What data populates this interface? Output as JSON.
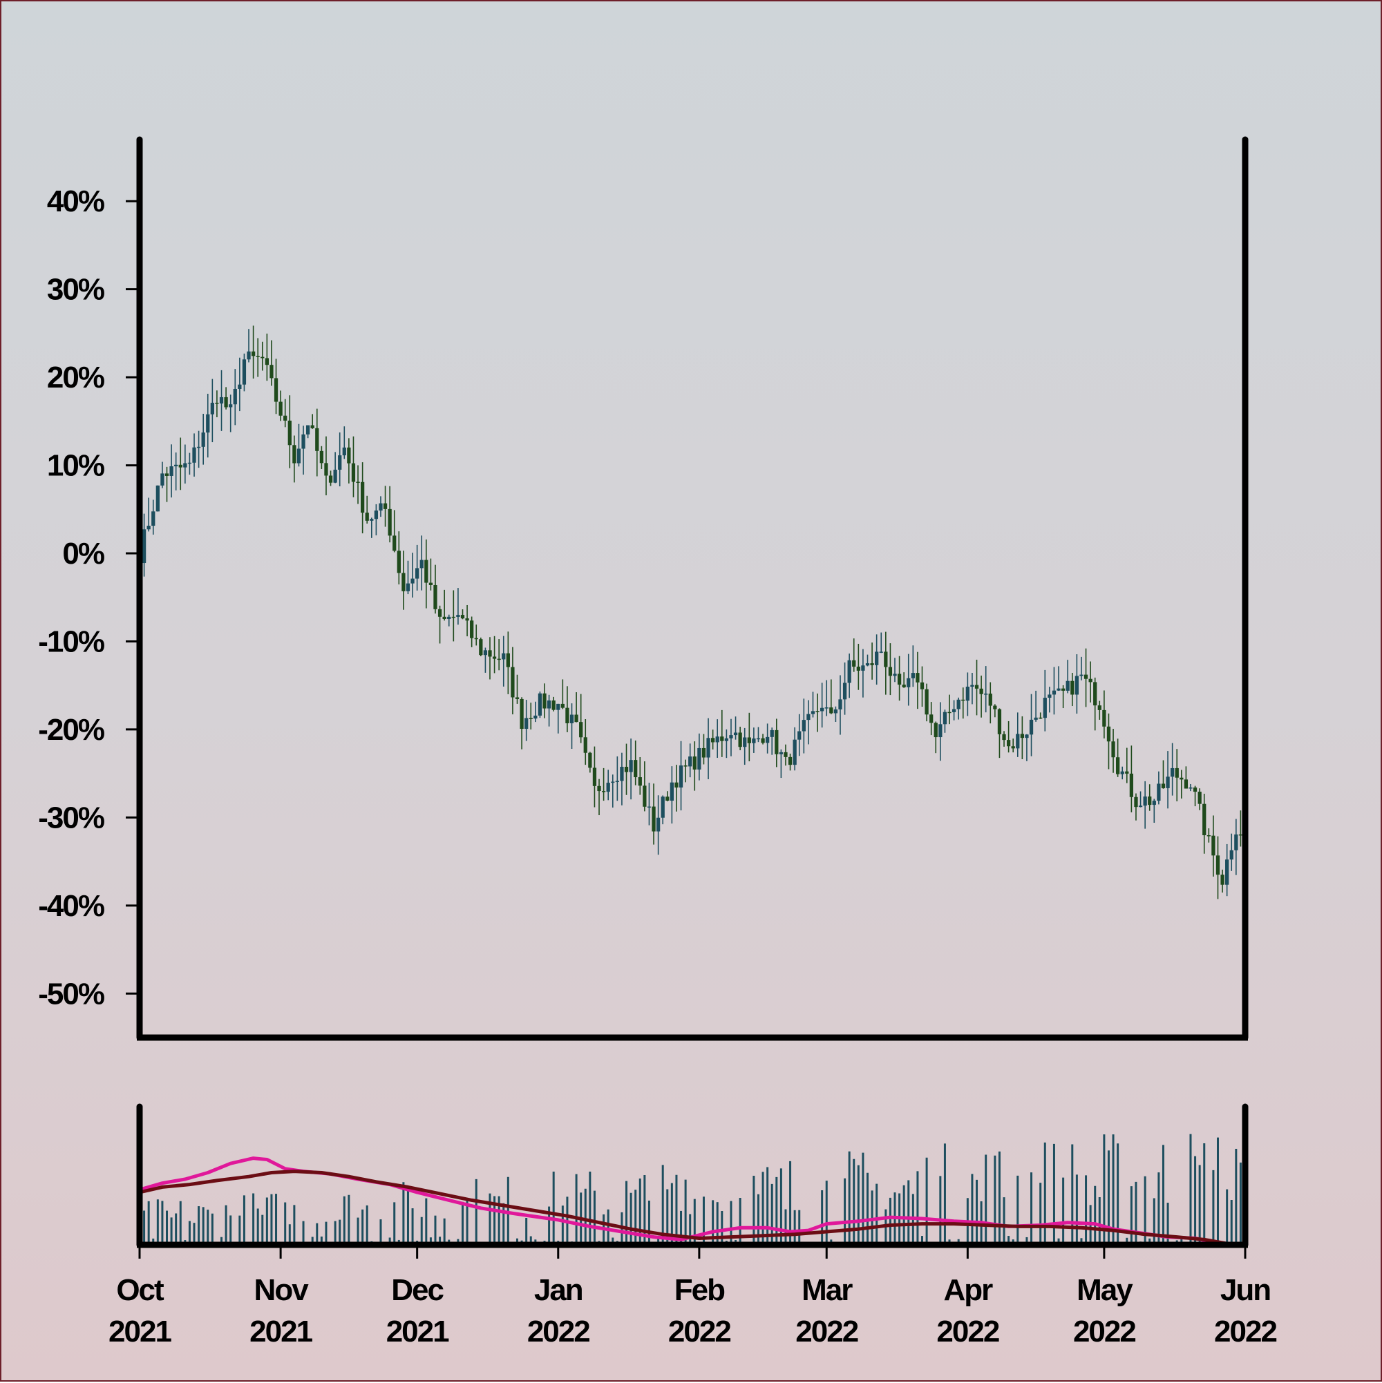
{
  "chart_data": {
    "type": "candlestick",
    "title": "",
    "xlabel": "",
    "ylabel": "",
    "ylim": [
      -55,
      47
    ],
    "yticks": [
      40,
      30,
      20,
      10,
      0,
      -10,
      -20,
      -30,
      -40,
      -50
    ],
    "ytick_labels": [
      "40%",
      "30%",
      "20%",
      "10%",
      "0%",
      "-10%",
      "-20%",
      "-30%",
      "-40%",
      "-50%"
    ],
    "x_start": "2021-10-01",
    "x_end": "2022-06-01",
    "xticks": [
      {
        "date": "2021-10-01",
        "month": "Oct",
        "year": "2021"
      },
      {
        "date": "2021-11-01",
        "month": "Nov",
        "year": "2021"
      },
      {
        "date": "2021-12-01",
        "month": "Dec",
        "year": "2021"
      },
      {
        "date": "2022-01-01",
        "month": "Jan",
        "year": "2022"
      },
      {
        "date": "2022-02-01",
        "month": "Feb",
        "year": "2022"
      },
      {
        "date": "2022-03-01",
        "month": "Mar",
        "year": "2022"
      },
      {
        "date": "2022-04-01",
        "month": "Apr",
        "year": "2022"
      },
      {
        "date": "2022-05-01",
        "month": "May",
        "year": "2022"
      },
      {
        "date": "2022-06-01",
        "month": "Jun",
        "year": "2022"
      }
    ],
    "grid": false,
    "legend": "none",
    "colors": {
      "up": "#1d4e5e",
      "down": "#1f4a1c",
      "volume": "#1d4e5e",
      "ma_short": "#e0189a",
      "ma_long": "#6b0d14",
      "axis": "#000000"
    },
    "price_path": [
      [
        "2021-10-01",
        0
      ],
      [
        "2021-10-06",
        9
      ],
      [
        "2021-10-12",
        10
      ],
      [
        "2021-10-18",
        18
      ],
      [
        "2021-10-21",
        16
      ],
      [
        "2021-10-24",
        22
      ],
      [
        "2021-10-28",
        22
      ],
      [
        "2021-11-01",
        16
      ],
      [
        "2021-11-04",
        11
      ],
      [
        "2021-11-07",
        15
      ],
      [
        "2021-11-11",
        8
      ],
      [
        "2021-11-15",
        12
      ],
      [
        "2021-11-20",
        4
      ],
      [
        "2021-11-24",
        5
      ],
      [
        "2021-11-28",
        -4
      ],
      [
        "2021-12-02",
        -1
      ],
      [
        "2021-12-06",
        -8
      ],
      [
        "2021-12-10",
        -7
      ],
      [
        "2021-12-15",
        -11
      ],
      [
        "2021-12-20",
        -12
      ],
      [
        "2021-12-24",
        -19
      ],
      [
        "2021-12-28",
        -17
      ],
      [
        "2022-01-01",
        -17
      ],
      [
        "2022-01-05",
        -20
      ],
      [
        "2022-01-09",
        -27
      ],
      [
        "2022-01-13",
        -25
      ],
      [
        "2022-01-17",
        -24
      ],
      [
        "2022-01-22",
        -31
      ],
      [
        "2022-01-26",
        -26
      ],
      [
        "2022-01-30",
        -24
      ],
      [
        "2022-02-03",
        -22
      ],
      [
        "2022-02-08",
        -20
      ],
      [
        "2022-02-12",
        -22
      ],
      [
        "2022-02-16",
        -20
      ],
      [
        "2022-02-20",
        -24
      ],
      [
        "2022-02-24",
        -20
      ],
      [
        "2022-02-28",
        -17
      ],
      [
        "2022-03-02",
        -19
      ],
      [
        "2022-03-06",
        -13
      ],
      [
        "2022-03-10",
        -13
      ],
      [
        "2022-03-13",
        -11
      ],
      [
        "2022-03-17",
        -16
      ],
      [
        "2022-03-21",
        -14
      ],
      [
        "2022-03-25",
        -21
      ],
      [
        "2022-03-29",
        -17
      ],
      [
        "2022-04-02",
        -15
      ],
      [
        "2022-04-06",
        -17
      ],
      [
        "2022-04-10",
        -22
      ],
      [
        "2022-04-14",
        -20
      ],
      [
        "2022-04-18",
        -17
      ],
      [
        "2022-04-22",
        -16
      ],
      [
        "2022-04-26",
        -14
      ],
      [
        "2022-04-30",
        -17
      ],
      [
        "2022-05-04",
        -24
      ],
      [
        "2022-05-08",
        -28
      ],
      [
        "2022-05-12",
        -28
      ],
      [
        "2022-05-16",
        -25
      ],
      [
        "2022-05-20",
        -26
      ],
      [
        "2022-05-24",
        -33
      ],
      [
        "2022-05-27",
        -37
      ],
      [
        "2022-05-30",
        -31
      ],
      [
        "2022-06-01",
        -32
      ]
    ],
    "volume_ma_short": [
      [
        "2021-10-01",
        0.42
      ],
      [
        "2021-10-06",
        0.47
      ],
      [
        "2021-10-11",
        0.5
      ],
      [
        "2021-10-16",
        0.55
      ],
      [
        "2021-10-21",
        0.62
      ],
      [
        "2021-10-26",
        0.66
      ],
      [
        "2021-10-29",
        0.65
      ],
      [
        "2021-11-02",
        0.58
      ],
      [
        "2021-11-06",
        0.56
      ],
      [
        "2021-11-12",
        0.54
      ],
      [
        "2021-11-18",
        0.5
      ],
      [
        "2021-11-25",
        0.46
      ],
      [
        "2021-12-01",
        0.4
      ],
      [
        "2021-12-08",
        0.34
      ],
      [
        "2021-12-15",
        0.28
      ],
      [
        "2021-12-22",
        0.24
      ],
      [
        "2022-01-01",
        0.19
      ],
      [
        "2022-01-08",
        0.14
      ],
      [
        "2022-01-15",
        0.1
      ],
      [
        "2022-01-22",
        0.06
      ],
      [
        "2022-01-28",
        0.04
      ],
      [
        "2022-02-04",
        0.1
      ],
      [
        "2022-02-10",
        0.13
      ],
      [
        "2022-02-16",
        0.13
      ],
      [
        "2022-02-21",
        0.1
      ],
      [
        "2022-02-25",
        0.11
      ],
      [
        "2022-03-01",
        0.16
      ],
      [
        "2022-03-08",
        0.18
      ],
      [
        "2022-03-15",
        0.21
      ],
      [
        "2022-03-22",
        0.2
      ],
      [
        "2022-03-29",
        0.18
      ],
      [
        "2022-04-04",
        0.17
      ],
      [
        "2022-04-10",
        0.14
      ],
      [
        "2022-04-17",
        0.15
      ],
      [
        "2022-04-23",
        0.17
      ],
      [
        "2022-04-29",
        0.16
      ],
      [
        "2022-05-03",
        0.12
      ],
      [
        "2022-05-09",
        0.09
      ],
      [
        "2022-05-15",
        0.06
      ],
      [
        "2022-05-21",
        0.05
      ],
      [
        "2022-05-25",
        0.02
      ],
      [
        "2022-05-28",
        0.0
      ]
    ],
    "volume_ma_long": [
      [
        "2021-10-01",
        0.4
      ],
      [
        "2021-10-06",
        0.44
      ],
      [
        "2021-10-12",
        0.46
      ],
      [
        "2021-10-18",
        0.49
      ],
      [
        "2021-10-25",
        0.52
      ],
      [
        "2021-10-30",
        0.55
      ],
      [
        "2021-11-04",
        0.56
      ],
      [
        "2021-11-10",
        0.55
      ],
      [
        "2021-11-16",
        0.52
      ],
      [
        "2021-11-22",
        0.48
      ],
      [
        "2021-11-29",
        0.44
      ],
      [
        "2021-12-06",
        0.39
      ],
      [
        "2021-12-13",
        0.34
      ],
      [
        "2021-12-20",
        0.3
      ],
      [
        "2021-12-27",
        0.26
      ],
      [
        "2022-01-03",
        0.22
      ],
      [
        "2022-01-10",
        0.17
      ],
      [
        "2022-01-17",
        0.12
      ],
      [
        "2022-01-24",
        0.08
      ],
      [
        "2022-02-01",
        0.05
      ],
      [
        "2022-02-08",
        0.06
      ],
      [
        "2022-02-15",
        0.07
      ],
      [
        "2022-02-22",
        0.08
      ],
      [
        "2022-03-01",
        0.1
      ],
      [
        "2022-03-08",
        0.12
      ],
      [
        "2022-03-15",
        0.15
      ],
      [
        "2022-03-22",
        0.16
      ],
      [
        "2022-03-29",
        0.16
      ],
      [
        "2022-04-05",
        0.15
      ],
      [
        "2022-04-12",
        0.14
      ],
      [
        "2022-04-19",
        0.14
      ],
      [
        "2022-04-26",
        0.13
      ],
      [
        "2022-05-03",
        0.11
      ],
      [
        "2022-05-10",
        0.08
      ],
      [
        "2022-05-17",
        0.06
      ],
      [
        "2022-05-23",
        0.04
      ],
      [
        "2022-05-28",
        0.01
      ]
    ]
  }
}
